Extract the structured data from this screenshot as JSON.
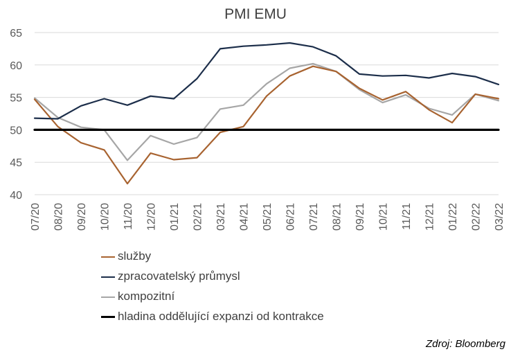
{
  "chart_data": {
    "type": "line",
    "title": "PMI EMU",
    "xlabel": "",
    "ylabel": "",
    "ylim": [
      40,
      65
    ],
    "yticks": [
      40,
      45,
      50,
      55,
      60,
      65
    ],
    "grid": "horizontal",
    "legend_position": "bottom",
    "categories": [
      "07/20",
      "08/20",
      "09/20",
      "10/20",
      "11/20",
      "12/20",
      "01/21",
      "02/21",
      "03/21",
      "04/21",
      "05/21",
      "06/21",
      "07/21",
      "08/21",
      "09/21",
      "10/21",
      "11/21",
      "12/21",
      "01/22",
      "02/22",
      "03/22"
    ],
    "series": [
      {
        "name": "služby",
        "color": "#A86330",
        "width": 2.2,
        "values": [
          54.7,
          50.5,
          48.0,
          46.9,
          41.7,
          46.4,
          45.4,
          45.7,
          49.6,
          50.5,
          55.2,
          58.3,
          59.8,
          59.0,
          56.4,
          54.6,
          55.9,
          53.1,
          51.1,
          55.5,
          54.8
        ]
      },
      {
        "name": "zpracovatelský průmysl",
        "color": "#1C2E4A",
        "width": 2.2,
        "values": [
          51.8,
          51.7,
          53.7,
          54.8,
          53.8,
          55.2,
          54.8,
          57.9,
          62.5,
          62.9,
          63.1,
          63.4,
          62.8,
          61.4,
          58.6,
          58.3,
          58.4,
          58.0,
          58.7,
          58.2,
          57.0
        ]
      },
      {
        "name": "kompozitní",
        "color": "#A6A6A6",
        "width": 2.2,
        "values": [
          54.9,
          51.9,
          50.4,
          50.0,
          45.3,
          49.1,
          47.8,
          48.8,
          53.2,
          53.8,
          57.1,
          59.5,
          60.2,
          59.0,
          56.2,
          54.2,
          55.4,
          53.3,
          52.3,
          55.5,
          54.5
        ]
      },
      {
        "name": "hladina oddělující expanzi od kontrakce",
        "color": "#000000",
        "width": 3.2,
        "values": [
          50,
          50,
          50,
          50,
          50,
          50,
          50,
          50,
          50,
          50,
          50,
          50,
          50,
          50,
          50,
          50,
          50,
          50,
          50,
          50,
          50
        ]
      }
    ]
  },
  "source": "Zdroj: Bloomberg"
}
